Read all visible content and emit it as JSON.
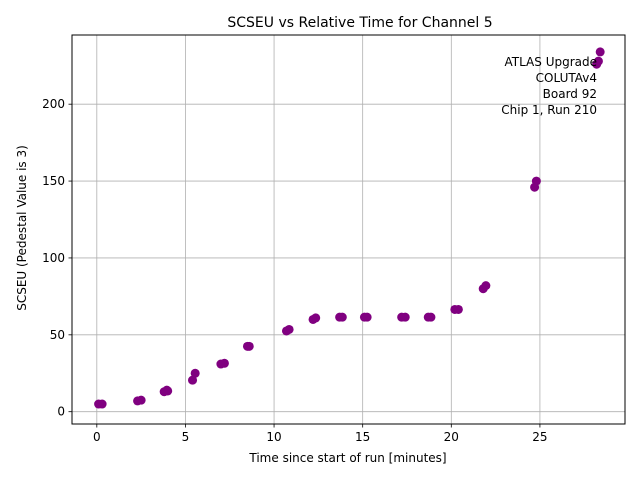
{
  "chart_data": {
    "type": "scatter",
    "title": "SCSEU vs Relative Time for Channel 5",
    "xlabel": "Time since start of run [minutes]",
    "ylabel": "SCSEU (Pedestal Value is 3)",
    "xlim": [
      -1.4,
      29.8
    ],
    "ylim": [
      -8,
      245
    ],
    "x_ticks": [
      0,
      5,
      10,
      15,
      20,
      25
    ],
    "y_ticks": [
      0,
      50,
      100,
      150,
      200
    ],
    "x_tick_labels": [
      "0",
      "5",
      "10",
      "15",
      "20",
      "25"
    ],
    "y_tick_labels": [
      "0",
      "50",
      "100",
      "150",
      "200"
    ],
    "grid": true,
    "marker_color": "#800080",
    "annotation_lines": [
      "ATLAS Upgrade",
      "COLUTAv4",
      "Board 92",
      "Chip 1, Run 210"
    ],
    "annotation_position": "top-right",
    "series": [
      {
        "name": "Channel 5",
        "points": [
          {
            "x": 0.1,
            "y": 5
          },
          {
            "x": 0.3,
            "y": 5
          },
          {
            "x": 2.3,
            "y": 7
          },
          {
            "x": 2.5,
            "y": 7.5
          },
          {
            "x": 3.8,
            "y": 13
          },
          {
            "x": 3.95,
            "y": 14
          },
          {
            "x": 4.0,
            "y": 13.5
          },
          {
            "x": 5.4,
            "y": 20.5
          },
          {
            "x": 5.55,
            "y": 25
          },
          {
            "x": 7.0,
            "y": 31
          },
          {
            "x": 7.2,
            "y": 31.5
          },
          {
            "x": 8.5,
            "y": 42.5
          },
          {
            "x": 8.6,
            "y": 42.5
          },
          {
            "x": 10.7,
            "y": 52.5
          },
          {
            "x": 10.85,
            "y": 53.5
          },
          {
            "x": 12.2,
            "y": 60
          },
          {
            "x": 12.35,
            "y": 61
          },
          {
            "x": 13.7,
            "y": 61.5
          },
          {
            "x": 13.85,
            "y": 61.5
          },
          {
            "x": 15.1,
            "y": 61.5
          },
          {
            "x": 15.25,
            "y": 61.5
          },
          {
            "x": 17.2,
            "y": 61.5
          },
          {
            "x": 17.4,
            "y": 61.5
          },
          {
            "x": 18.7,
            "y": 61.5
          },
          {
            "x": 18.85,
            "y": 61.5
          },
          {
            "x": 20.2,
            "y": 66.5
          },
          {
            "x": 20.4,
            "y": 66.5
          },
          {
            "x": 21.8,
            "y": 80
          },
          {
            "x": 21.95,
            "y": 82
          },
          {
            "x": 24.7,
            "y": 146
          },
          {
            "x": 24.8,
            "y": 150
          },
          {
            "x": 28.2,
            "y": 226
          },
          {
            "x": 28.3,
            "y": 228
          },
          {
            "x": 28.4,
            "y": 234
          }
        ]
      }
    ]
  }
}
